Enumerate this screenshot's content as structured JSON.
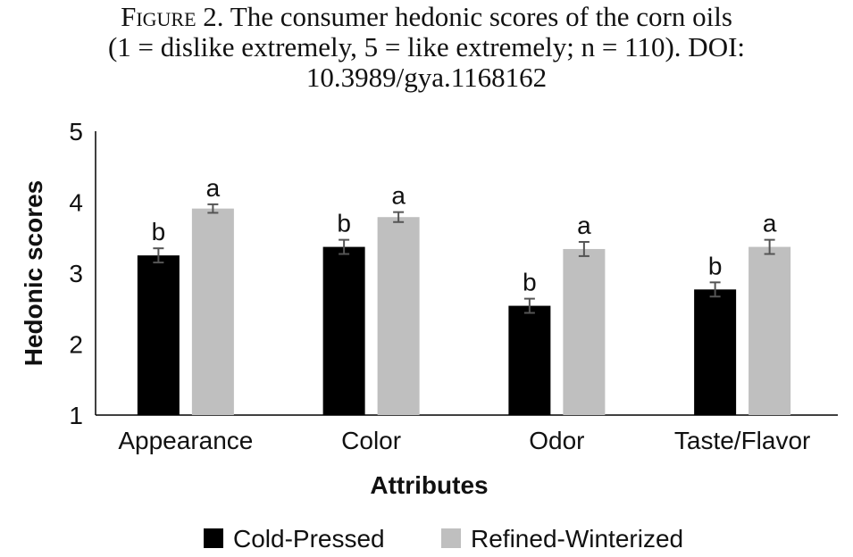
{
  "caption": {
    "label": "Figure 2.",
    "line1": "The consumer hedonic scores of the corn oils",
    "line2": "(1 = dislike extremely, 5 = like extremely; n = 110). DOI:",
    "line3": "10.3989/gya.1168162"
  },
  "chart_data": {
    "type": "bar",
    "title": "",
    "xlabel": "Attributes",
    "ylabel": "Hedonic scores",
    "ylim": [
      1,
      5
    ],
    "yticks": [
      "1",
      "2",
      "3",
      "4",
      "5"
    ],
    "grid": false,
    "legend_position": "bottom",
    "categories": [
      "Appearance",
      "Color",
      "Odor",
      "Taste/Flavor"
    ],
    "series": [
      {
        "name": "Cold-Pressed",
        "color": "#000000",
        "values": [
          3.25,
          3.37,
          2.54,
          2.77
        ],
        "errors": [
          0.1,
          0.1,
          0.1,
          0.1
        ],
        "labels": [
          "b",
          "b",
          "b",
          "b"
        ]
      },
      {
        "name": "Refined-Winterized",
        "color": "#bfbfbf",
        "values": [
          3.91,
          3.79,
          3.34,
          3.37
        ],
        "errors": [
          0.06,
          0.07,
          0.1,
          0.1
        ],
        "labels": [
          "a",
          "a",
          "a",
          "a"
        ]
      }
    ]
  }
}
